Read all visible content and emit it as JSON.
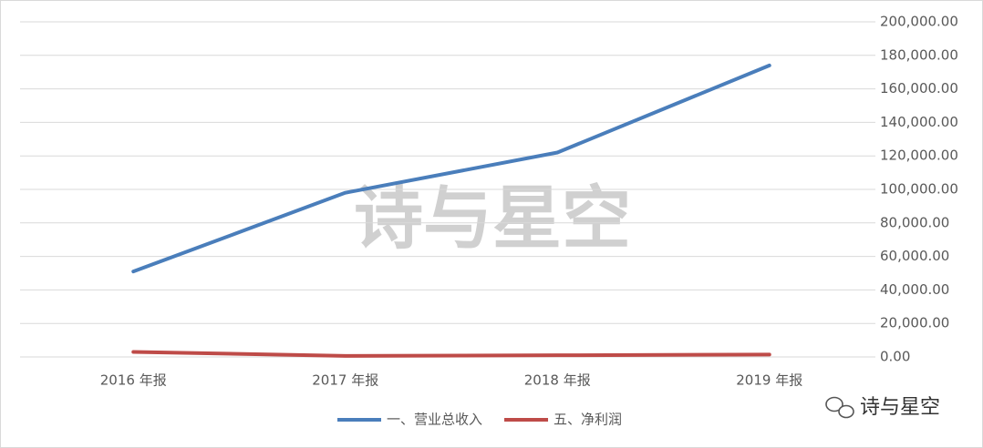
{
  "chart_data": {
    "type": "line",
    "categories": [
      "2016 年报",
      "2017 年报",
      "2018 年报",
      "2019 年报"
    ],
    "series": [
      {
        "name": "一、营业总收入",
        "color": "#4a7ebb",
        "values": [
          51000,
          98000,
          122000,
          174000
        ]
      },
      {
        "name": "五、净利润",
        "color": "#be4b48",
        "values": [
          3000,
          600,
          1000,
          1400
        ]
      }
    ],
    "ylim": [
      0,
      200000
    ],
    "yticks": [
      {
        "value": 0,
        "label": "0.00"
      },
      {
        "value": 20000,
        "label": "20,000.00"
      },
      {
        "value": 40000,
        "label": "40,000.00"
      },
      {
        "value": 60000,
        "label": "60,000.00"
      },
      {
        "value": 80000,
        "label": "80,000.00"
      },
      {
        "value": 100000,
        "label": "100,000.00"
      },
      {
        "value": 120000,
        "label": "120,000.00"
      },
      {
        "value": 140000,
        "label": "140,000.00"
      },
      {
        "value": 160000,
        "label": "160,000.00"
      },
      {
        "value": 180000,
        "label": "180,000.00"
      },
      {
        "value": 200000,
        "label": "200,000.00"
      }
    ],
    "grid": true,
    "y_axis_side": "right",
    "legend": "bottom",
    "watermark": "诗与星空",
    "credit": "诗与星空"
  }
}
